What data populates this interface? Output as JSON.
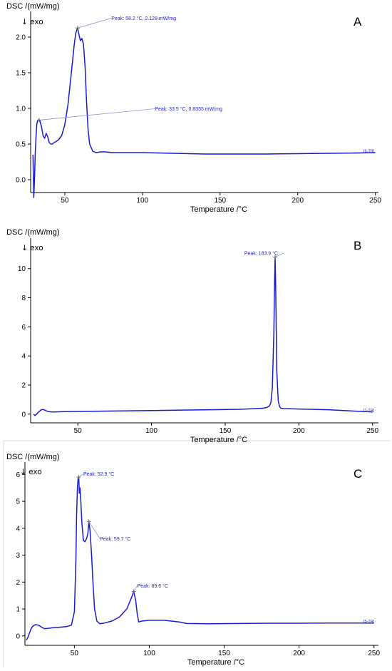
{
  "colors": {
    "curve": "#1a1ad0",
    "annotation": "#1a1ad0",
    "axis": "#000000"
  },
  "chart_data": [
    {
      "type": "line",
      "panel": "A",
      "ylabel": "DSC /(mW/mg)",
      "xlabel": "Temperature /°C",
      "direction_label": "↓ exo",
      "xlim": [
        28,
        252
      ],
      "ylim": [
        -0.18,
        2.3
      ],
      "xticks": [
        50,
        100,
        150,
        200,
        250
      ],
      "yticks": [
        0.0,
        0.5,
        1.0,
        1.5,
        2.0
      ],
      "ytick_labels": [
        "0.0",
        "0.5",
        "1.0",
        "1.5",
        "2.0"
      ],
      "trace_tag": "[6-TR]",
      "annotations": [
        {
          "text": "Peak: 58.2 °C, 2.128 mW/mg",
          "x": 58.2,
          "y": 2.128,
          "text_x": 80,
          "text_y": 2.24
        },
        {
          "text": "Peak: 33.5 °C, 0.8355 mW/mg",
          "x": 33.5,
          "y": 0.8355,
          "text_x": 108,
          "text_y": 0.97
        }
      ],
      "series": [
        {
          "x": [
            29.5,
            30,
            30.5,
            31,
            31.5,
            32,
            32.5,
            33,
            33.5,
            34,
            35,
            36,
            37,
            38,
            39,
            40,
            41,
            42,
            43,
            44,
            46,
            48,
            50,
            52,
            54,
            56,
            57,
            58.2,
            59,
            60,
            61,
            62,
            63,
            64,
            65,
            66,
            68,
            70,
            73,
            76,
            80,
            90,
            100,
            120,
            140,
            160,
            180,
            200,
            220,
            240,
            250
          ],
          "y": [
            0.35,
            -0.25,
            0.0,
            0.38,
            0.62,
            0.78,
            0.83,
            0.84,
            0.8355,
            0.82,
            0.74,
            0.62,
            0.58,
            0.65,
            0.6,
            0.52,
            0.5,
            0.5,
            0.52,
            0.53,
            0.56,
            0.62,
            0.77,
            1.05,
            1.45,
            1.88,
            2.05,
            2.128,
            2.05,
            1.95,
            1.98,
            1.9,
            1.6,
            1.1,
            0.7,
            0.5,
            0.4,
            0.38,
            0.39,
            0.39,
            0.38,
            0.38,
            0.38,
            0.37,
            0.36,
            0.36,
            0.36,
            0.365,
            0.37,
            0.375,
            0.38
          ]
        }
      ]
    },
    {
      "type": "line",
      "panel": "B",
      "ylabel": "DSC /(mW/mg)",
      "xlabel": "Temperature /°C",
      "direction_label": "↓ exo",
      "xlim": [
        18,
        254
      ],
      "ylim": [
        -0.6,
        11.8
      ],
      "xticks": [
        50,
        100,
        150,
        200,
        250
      ],
      "yticks": [
        0,
        2,
        4,
        6,
        8,
        10
      ],
      "ytick_labels": [
        "0",
        "2",
        "4",
        "6",
        "8",
        "10"
      ],
      "trace_tag": "[1-TR]",
      "annotations": [
        {
          "text": "Peak: 183.9 °C",
          "x": 183.9,
          "y": 10.8,
          "text_x": 163,
          "text_y": 10.95
        }
      ],
      "series": [
        {
          "x": [
            20,
            21,
            22,
            23,
            24,
            25,
            26,
            27,
            28,
            30,
            32,
            34,
            40,
            60,
            100,
            140,
            160,
            175,
            178,
            180,
            181,
            182,
            183,
            183.5,
            183.9,
            184.3,
            185,
            186,
            187,
            188,
            190,
            200,
            220,
            240,
            250
          ],
          "y": [
            0.0,
            -0.1,
            0.0,
            0.1,
            0.2,
            0.28,
            0.32,
            0.3,
            0.25,
            0.18,
            0.15,
            0.15,
            0.17,
            0.2,
            0.25,
            0.3,
            0.33,
            0.4,
            0.45,
            0.55,
            0.8,
            1.8,
            5.5,
            9.0,
            10.8,
            8.5,
            3.0,
            0.9,
            0.5,
            0.4,
            0.38,
            0.35,
            0.3,
            0.2,
            0.15
          ]
        }
      ]
    },
    {
      "type": "line",
      "panel": "C",
      "ylabel": "DSC /(mW/mg)",
      "xlabel": "Temperature /°C",
      "direction_label": "↓ exo",
      "xlim": [
        17,
        253
      ],
      "ylim": [
        -0.35,
        6.3
      ],
      "xticks": [
        50,
        100,
        150,
        200,
        250
      ],
      "yticks": [
        0,
        1,
        2,
        3,
        4,
        5,
        6
      ],
      "ytick_labels": [
        "0",
        "1",
        "2",
        "3",
        "4",
        "5",
        "6"
      ],
      "trace_tag": "[5-TR]",
      "annotations": [
        {
          "text": "Peak: 52.9 °C",
          "x": 52.9,
          "y": 5.9,
          "text_x": 56,
          "text_y": 5.95
        },
        {
          "text": "Peak: 59.7 °C",
          "x": 59.7,
          "y": 4.25,
          "text_x": 67,
          "text_y": 3.55
        },
        {
          "text": "Peak: 89.6 °C",
          "x": 89.6,
          "y": 1.65,
          "text_x": 92,
          "text_y": 1.8
        }
      ],
      "series": [
        {
          "x": [
            18,
            19,
            20,
            21,
            22,
            24,
            26,
            28,
            30,
            32,
            35,
            40,
            45,
            48,
            50,
            51,
            51.5,
            52,
            52.5,
            52.9,
            53.3,
            53.8,
            54.3,
            55,
            56,
            57,
            58,
            59,
            59.7,
            60.5,
            61.5,
            62.5,
            63.5,
            65,
            67,
            70,
            75,
            80,
            85,
            88,
            89.6,
            91,
            92,
            93,
            95,
            100,
            110,
            120,
            125,
            140,
            160,
            180,
            200,
            220,
            240,
            250
          ],
          "y": [
            -0.15,
            -0.05,
            0.1,
            0.25,
            0.35,
            0.42,
            0.4,
            0.33,
            0.27,
            0.28,
            0.3,
            0.32,
            0.35,
            0.4,
            0.9,
            2.8,
            4.5,
            5.5,
            5.85,
            5.9,
            5.3,
            5.5,
            5.0,
            4.2,
            3.55,
            3.5,
            3.6,
            3.8,
            4.25,
            3.9,
            3.0,
            1.9,
            1.0,
            0.55,
            0.45,
            0.48,
            0.55,
            0.7,
            1.0,
            1.4,
            1.65,
            1.3,
            0.8,
            0.52,
            0.55,
            0.58,
            0.58,
            0.52,
            0.46,
            0.45,
            0.46,
            0.47,
            0.47,
            0.48,
            0.48,
            0.48
          ]
        }
      ]
    }
  ]
}
